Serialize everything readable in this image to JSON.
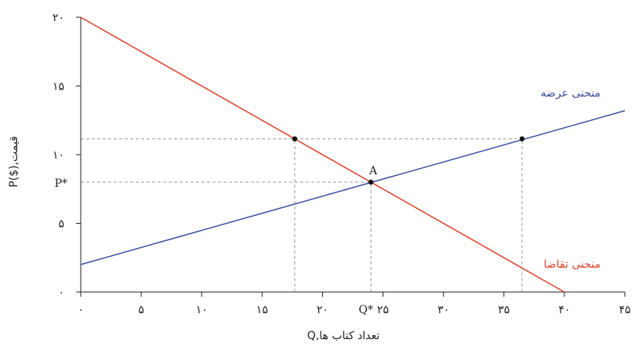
{
  "chart_data": {
    "type": "line",
    "xlabel": "Q,تعداد کتاب ها",
    "ylabel": "P($),قیمت",
    "xlim": [
      0,
      45
    ],
    "ylim": [
      0,
      20
    ],
    "x_ticks": [
      {
        "value": 0,
        "label": "۰"
      },
      {
        "value": 5,
        "label": "۵"
      },
      {
        "value": 10,
        "label": "۱۰"
      },
      {
        "value": 15,
        "label": "۱۵"
      },
      {
        "value": 20,
        "label": "۲۰"
      },
      {
        "value": 25,
        "label": "۲۵"
      },
      {
        "value": 30,
        "label": "۳۰"
      },
      {
        "value": 35,
        "label": "۳۵"
      },
      {
        "value": 40,
        "label": "۴۰"
      },
      {
        "value": 45,
        "label": "۴۵"
      }
    ],
    "y_ticks": [
      {
        "value": 0,
        "label": "۰"
      },
      {
        "value": 5,
        "label": "۵"
      },
      {
        "value": 10,
        "label": "۱۰"
      },
      {
        "value": 15,
        "label": "۱۵"
      },
      {
        "value": 20,
        "label": "۲۰"
      }
    ],
    "series": [
      {
        "name": "منحنی عرضه",
        "color": "#3d4ea1",
        "x": [
          0,
          45
        ],
        "y": [
          2,
          13.2
        ]
      },
      {
        "name": "منحنی تقاضا",
        "color": "#e0402a",
        "x": [
          0,
          40
        ],
        "y": [
          20,
          0
        ]
      }
    ],
    "points": [
      {
        "x": 17.7,
        "y": 11.15
      },
      {
        "x": 24.0,
        "y": 8.0,
        "label": "A"
      },
      {
        "x": 36.5,
        "y": 11.15
      }
    ],
    "reference_lines": [
      {
        "kind": "h",
        "y": 11.15,
        "from": 0,
        "to": 36.5
      },
      {
        "kind": "h",
        "y": 8.0,
        "from": 0,
        "to": 24.0
      },
      {
        "kind": "v",
        "x": 17.7,
        "from": 0,
        "to": 11.15
      },
      {
        "kind": "v",
        "x": 24.0,
        "from": 0,
        "to": 8.0
      },
      {
        "kind": "v",
        "x": 36.5,
        "from": 0,
        "to": 11.15
      }
    ],
    "annotations": {
      "q_star": "Q*",
      "p_star": "P*"
    }
  }
}
